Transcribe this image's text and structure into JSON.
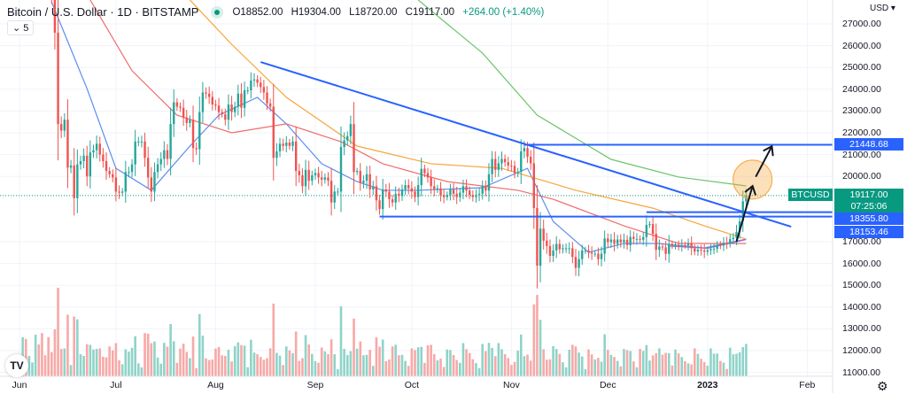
{
  "header": {
    "title": "Bitcoin / U.S. Dollar · 1D · BITSTAMP",
    "open": "O18852.00",
    "high": "H19304.00",
    "low": "L18720.00",
    "close": "C19117.00",
    "change": "+264.00 (+1.40%)",
    "indicators_toggle": "5",
    "market_status_color": "#089981"
  },
  "axis": {
    "currency": "USD",
    "price_ticks": [
      "27000.00",
      "26000.00",
      "25000.00",
      "24000.00",
      "23000.00",
      "22000.00",
      "21000.00",
      "20000.00",
      "17000.00",
      "16000.00",
      "15000.00",
      "14000.00",
      "13000.00",
      "12000.00",
      "11000.00"
    ],
    "time_ticks": [
      {
        "label": "Jun",
        "date": "2022-06-01"
      },
      {
        "label": "Jul",
        "date": "2022-07-01"
      },
      {
        "label": "Aug",
        "date": "2022-08-01"
      },
      {
        "label": "Sep",
        "date": "2022-09-01"
      },
      {
        "label": "Oct",
        "date": "2022-10-01"
      },
      {
        "label": "Nov",
        "date": "2022-11-01"
      },
      {
        "label": "Dec",
        "date": "2022-12-01"
      },
      {
        "label": "2023",
        "date": "2023-01-01",
        "bold": true
      },
      {
        "label": "Feb",
        "date": "2023-02-01"
      }
    ]
  },
  "price_labels": {
    "symbol": "BTCUSD",
    "last_price": "19117.00",
    "countdown": "07:25:06",
    "level_1": "21448.68",
    "level_2": "18355.80",
    "level_3": "18153.46"
  },
  "colors": {
    "up": "#26a69a",
    "down": "#ef5350",
    "vol_up": "#8fd3c8",
    "vol_down": "#f7a9a7",
    "drawing": "#2962ff",
    "ma_fast": "#5b8def",
    "ma_mid": "#f06c6c",
    "ma_slow": "#f7a53a",
    "ma_long": "#6cc46c",
    "ma_short": "#9c6cd9",
    "highlight": "#f7a53a",
    "last_price": "#089981"
  },
  "chart_data": {
    "type": "candlestick",
    "symbol": "BTCUSD",
    "interval": "1D",
    "start": "2022-06-01",
    "closes": [
      29800,
      30450,
      29700,
      29860,
      29900,
      31370,
      31130,
      30200,
      30100,
      29000,
      28400,
      26600,
      22400,
      22100,
      22600,
      20400,
      20500,
      19000,
      20550,
      20700,
      20950,
      20000,
      21100,
      21200,
      21500,
      21000,
      20700,
      20250,
      20100,
      19950,
      19300,
      19250,
      19300,
      20200,
      20200,
      20550,
      21600,
      21600,
      21600,
      20850,
      19950,
      19300,
      20200,
      20550,
      20800,
      21200,
      20800,
      22400,
      23400,
      23200,
      23150,
      22700,
      22450,
      22600,
      21300,
      21250,
      22950,
      23850,
      23800,
      23650,
      23300,
      23250,
      22950,
      22850,
      22600,
      23300,
      22950,
      23200,
      23800,
      23150,
      23950,
      23950,
      24400,
      24450,
      24300,
      24100,
      23850,
      23350,
      23200,
      20850,
      21150,
      21500,
      21400,
      21550,
      21400,
      21600,
      20250,
      20050,
      19550,
      20300,
      19800,
      20050,
      20150,
      19950,
      19850,
      19950,
      19800,
      18800,
      19300,
      19300,
      21350,
      21650,
      21850,
      22400,
      20200,
      20250,
      19700,
      19800,
      20100,
      19400,
      19550,
      18900,
      18500,
      19400,
      19300,
      18950,
      18800,
      19200,
      19100,
      19400,
      19600,
      19450,
      19300,
      19050,
      19600,
      20350,
      20150,
      19950,
      19550,
      19400,
      19450,
      19150,
      19050,
      19150,
      19400,
      19200,
      19050,
      19250,
      19550,
      19350,
      19150,
      19050,
      19150,
      19200,
      19550,
      19350,
      20100,
      20800,
      20300,
      20600,
      20800,
      20650,
      20500,
      20480,
      20150,
      20200,
      21150,
      21300,
      20900,
      20600,
      18550,
      15900,
      17600,
      17050,
      16800,
      16350,
      16600,
      16900,
      16650,
      16700,
      16700,
      16700,
      16300,
      15800,
      16200,
      16600,
      16600,
      16500,
      16450,
      16450,
      16200,
      16450,
      17150,
      16980,
      17100,
      16900,
      17100,
      16970,
      17090,
      16840,
      17220,
      17130,
      17130,
      17090,
      17210,
      17770,
      17810,
      17360,
      16630,
      16780,
      16740,
      16440,
      16900,
      16820,
      16830,
      16820,
      16840,
      16830,
      16920,
      16700,
      16550,
      16630,
      16600,
      16540,
      16610,
      16670,
      16670,
      16850,
      16830,
      16950,
      16940,
      17120,
      17180,
      17440,
      17940,
      18852,
      19117
    ],
    "moving_averages": [
      {
        "key": "ma_fast",
        "points": [
          [
            "2022-06-11",
            28000
          ],
          [
            "2022-06-22",
            24030
          ],
          [
            "2022-07-01",
            20370
          ],
          [
            "2022-07-12",
            19360
          ],
          [
            "2022-07-24",
            21390
          ],
          [
            "2022-08-02",
            22810
          ],
          [
            "2022-08-14",
            23630
          ],
          [
            "2022-08-23",
            22410
          ],
          [
            "2022-09-03",
            20580
          ],
          [
            "2022-09-14",
            19760
          ],
          [
            "2022-09-22",
            19360
          ],
          [
            "2022-10-03",
            19360
          ],
          [
            "2022-10-23",
            19480
          ],
          [
            "2022-11-06",
            20370
          ],
          [
            "2022-11-14",
            17930
          ],
          [
            "2022-11-25",
            16510
          ],
          [
            "2022-12-06",
            16920
          ],
          [
            "2022-12-17",
            16920
          ],
          [
            "2022-12-31",
            16710
          ],
          [
            "2023-01-13",
            17120
          ]
        ]
      },
      {
        "key": "ma_mid",
        "points": [
          [
            "2022-06-23",
            28100
          ],
          [
            "2022-07-06",
            24850
          ],
          [
            "2022-07-20",
            22810
          ],
          [
            "2022-08-06",
            22000
          ],
          [
            "2022-08-23",
            22410
          ],
          [
            "2022-09-09",
            21590
          ],
          [
            "2022-09-22",
            20580
          ],
          [
            "2022-10-12",
            19760
          ],
          [
            "2022-11-03",
            19360
          ],
          [
            "2022-11-14",
            18950
          ],
          [
            "2022-12-06",
            17730
          ],
          [
            "2022-12-23",
            16920
          ],
          [
            "2023-01-13",
            16920
          ]
        ]
      },
      {
        "key": "ma_slow",
        "points": [
          [
            "2022-07-24",
            28100
          ],
          [
            "2022-08-06",
            26060
          ],
          [
            "2022-08-23",
            23630
          ],
          [
            "2022-09-14",
            21390
          ],
          [
            "2022-10-07",
            20580
          ],
          [
            "2022-10-29",
            20370
          ],
          [
            "2022-11-21",
            19360
          ],
          [
            "2022-12-15",
            18540
          ],
          [
            "2022-12-31",
            17730
          ],
          [
            "2023-01-13",
            17120
          ]
        ]
      },
      {
        "key": "ma_long",
        "points": [
          [
            "2022-10-03",
            28100
          ],
          [
            "2022-10-23",
            25660
          ],
          [
            "2022-11-09",
            22810
          ],
          [
            "2022-12-02",
            20780
          ],
          [
            "2022-12-23",
            19970
          ],
          [
            "2023-01-13",
            19560
          ]
        ]
      },
      {
        "key": "ma_short",
        "points": [
          [
            "2022-12-20",
            16800
          ],
          [
            "2023-01-01",
            16700
          ],
          [
            "2023-01-13",
            17100
          ]
        ]
      }
    ],
    "drawings": {
      "trendline": [
        [
          "2022-08-15",
          25250
        ],
        [
          "2023-01-27",
          17690
        ]
      ],
      "horizontal_levels": [
        {
          "price": 21448.68,
          "from": "2022-11-05"
        },
        {
          "price": 18355.8,
          "from": "2022-12-13"
        },
        {
          "price": 18153.46,
          "from": "2022-09-21"
        }
      ],
      "highlight_circle": {
        "date": "2023-01-15",
        "price": 19850
      },
      "arrows": [
        [
          [
            "2023-01-10",
            17000
          ],
          [
            "2023-01-15",
            19560
          ]
        ],
        [
          [
            "2023-01-16",
            19980
          ],
          [
            "2023-01-21",
            21380
          ]
        ]
      ]
    },
    "ylim": [
      10960,
      28100
    ],
    "grid": true
  }
}
